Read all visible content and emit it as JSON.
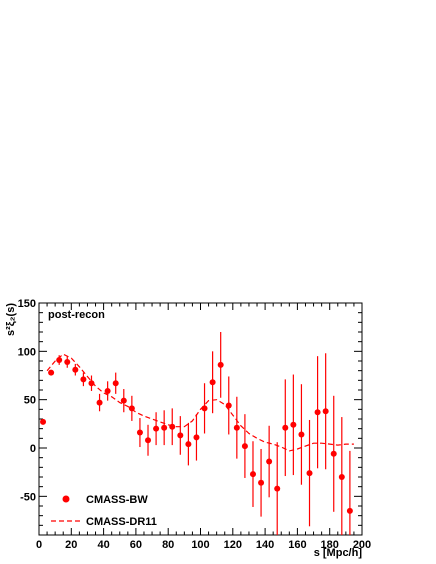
{
  "chart_data": {
    "type": "scatter",
    "annotation": "post-recon",
    "xlabel": "s [Mpc/h]",
    "ylabel": "s²ξ₂(s)",
    "xlim": [
      0,
      200
    ],
    "ylim": [
      -90,
      150
    ],
    "x_ticks": [
      0,
      20,
      40,
      60,
      80,
      100,
      120,
      140,
      160,
      180,
      200
    ],
    "y_ticks": [
      -50,
      0,
      50,
      100,
      150
    ],
    "grid": false,
    "legend_position": "bottom-left",
    "colors": {
      "series": "#ff0000",
      "axes": "#000000"
    },
    "series": [
      {
        "name": "CMASS-BW",
        "style": "points-with-errorbars",
        "points": [
          {
            "x": 2.5,
            "y": 27,
            "err": 0
          },
          {
            "x": 7.5,
            "y": 78,
            "err": 0
          },
          {
            "x": 12.5,
            "y": 91,
            "err": 5
          },
          {
            "x": 17.5,
            "y": 89,
            "err": 6
          },
          {
            "x": 22.5,
            "y": 81,
            "err": 6
          },
          {
            "x": 27.5,
            "y": 71,
            "err": 7
          },
          {
            "x": 32.5,
            "y": 67,
            "err": 8
          },
          {
            "x": 37.5,
            "y": 47,
            "err": 9
          },
          {
            "x": 42.5,
            "y": 59,
            "err": 10
          },
          {
            "x": 47.5,
            "y": 67,
            "err": 11
          },
          {
            "x": 52.5,
            "y": 49,
            "err": 12
          },
          {
            "x": 57.5,
            "y": 41,
            "err": 13
          },
          {
            "x": 62.5,
            "y": 16,
            "err": 15
          },
          {
            "x": 67.5,
            "y": 8,
            "err": 16
          },
          {
            "x": 72.5,
            "y": 20,
            "err": 17
          },
          {
            "x": 77.5,
            "y": 21,
            "err": 18
          },
          {
            "x": 82.5,
            "y": 22,
            "err": 19
          },
          {
            "x": 87.5,
            "y": 13,
            "err": 20
          },
          {
            "x": 92.5,
            "y": 4,
            "err": 22
          },
          {
            "x": 97.5,
            "y": 11,
            "err": 24
          },
          {
            "x": 102.5,
            "y": 41,
            "err": 26
          },
          {
            "x": 107.5,
            "y": 68,
            "err": 32
          },
          {
            "x": 112.5,
            "y": 86,
            "err": 34
          },
          {
            "x": 117.5,
            "y": 44,
            "err": 30
          },
          {
            "x": 122.5,
            "y": 21,
            "err": 32
          },
          {
            "x": 127.5,
            "y": 2,
            "err": 33
          },
          {
            "x": 132.5,
            "y": -27,
            "err": 34
          },
          {
            "x": 137.5,
            "y": -36,
            "err": 35
          },
          {
            "x": 142.5,
            "y": -14,
            "err": 37
          },
          {
            "x": 147.5,
            "y": -42,
            "err": 48
          },
          {
            "x": 152.5,
            "y": 21,
            "err": 50
          },
          {
            "x": 157.5,
            "y": 24,
            "err": 52
          },
          {
            "x": 162.5,
            "y": 14,
            "err": 52
          },
          {
            "x": 167.5,
            "y": -26,
            "err": 55
          },
          {
            "x": 172.5,
            "y": 37,
            "err": 58
          },
          {
            "x": 177.5,
            "y": 38,
            "err": 60
          },
          {
            "x": 182.5,
            "y": -6,
            "err": 60
          },
          {
            "x": 187.5,
            "y": -30,
            "err": 62
          },
          {
            "x": 192.5,
            "y": -65,
            "err": 62
          }
        ]
      },
      {
        "name": "CMASS-DR11",
        "style": "dashed-line",
        "x": [
          5,
          10,
          15,
          20,
          25,
          30,
          35,
          40,
          45,
          50,
          55,
          60,
          65,
          70,
          75,
          80,
          85,
          90,
          95,
          100,
          105,
          110,
          115,
          120,
          125,
          130,
          135,
          140,
          145,
          150,
          155,
          160,
          165,
          170,
          175,
          180,
          185,
          190,
          195
        ],
        "y": [
          80,
          90,
          97,
          93,
          84,
          74,
          64,
          57,
          53,
          47,
          43,
          37,
          33,
          30,
          27,
          24,
          22,
          22,
          28,
          40,
          49,
          50,
          45,
          34,
          23,
          15,
          10,
          6,
          4,
          1,
          -3,
          -1,
          2,
          5,
          5,
          4,
          3,
          4,
          4
        ]
      }
    ]
  }
}
